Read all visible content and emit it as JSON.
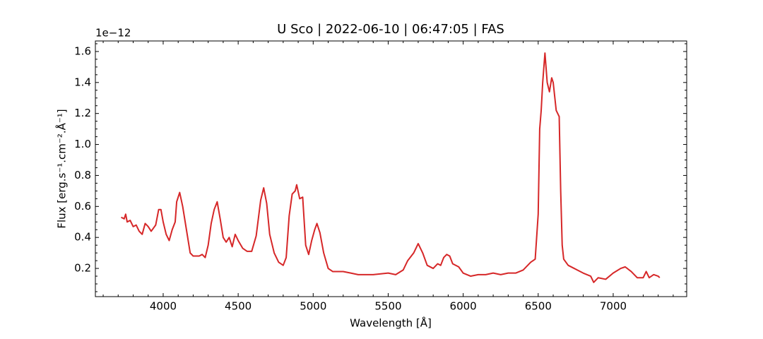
{
  "chart_data": {
    "type": "line",
    "title": "U Sco | 2022-06-10 | 06:47:05 | FAS",
    "xlabel": "Wavelength [Å]",
    "ylabel": "Flux [erg.s⁻¹.cm⁻².Å⁻¹]",
    "y_offset_text": "1e−12",
    "xlim": [
      3548,
      7490
    ],
    "ylim": [
      0.018,
      1.668
    ],
    "xticks": [
      4000,
      4500,
      5000,
      5500,
      6000,
      6500,
      7000
    ],
    "yticks": [
      0.2,
      0.4,
      0.6,
      0.8,
      {
        "value": 1.0,
        "label": "1.0"
      },
      1.2,
      1.4,
      1.6
    ],
    "xminorticks": [
      3600,
      3700,
      3800,
      3900,
      4100,
      4200,
      4300,
      4400,
      4600,
      4700,
      4800,
      4900,
      5100,
      5200,
      5300,
      5400,
      5600,
      5700,
      5800,
      5900,
      6100,
      6200,
      6300,
      6400,
      6600,
      6700,
      6800,
      6900,
      7100,
      7200,
      7300,
      7400
    ],
    "yminorticks": [
      0.05,
      0.1,
      0.15,
      0.25,
      0.3,
      0.35,
      0.45,
      0.5,
      0.55,
      0.65,
      0.7,
      0.75,
      0.85,
      0.9,
      0.95,
      1.05,
      1.1,
      1.15,
      1.25,
      1.3,
      1.35,
      1.45,
      1.5,
      1.55,
      1.65
    ],
    "tick_direction": "in",
    "series": [
      {
        "color": "#d62728",
        "x": [
          3720,
          3740,
          3750,
          3760,
          3780,
          3800,
          3820,
          3840,
          3860,
          3880,
          3900,
          3920,
          3950,
          3970,
          3985,
          4000,
          4020,
          4040,
          4060,
          4080,
          4090,
          4110,
          4130,
          4160,
          4180,
          4200,
          4240,
          4260,
          4280,
          4300,
          4320,
          4340,
          4360,
          4380,
          4400,
          4420,
          4440,
          4460,
          4480,
          4500,
          4530,
          4560,
          4590,
          4620,
          4650,
          4670,
          4690,
          4710,
          4740,
          4770,
          4800,
          4820,
          4840,
          4860,
          4880,
          4890,
          4910,
          4930,
          4950,
          4970,
          4990,
          5010,
          5025,
          5045,
          5070,
          5100,
          5130,
          5200,
          5250,
          5300,
          5400,
          5500,
          5550,
          5600,
          5630,
          5670,
          5700,
          5730,
          5760,
          5800,
          5830,
          5850,
          5870,
          5890,
          5910,
          5930,
          5970,
          6000,
          6050,
          6100,
          6150,
          6200,
          6250,
          6300,
          6350,
          6400,
          6450,
          6480,
          6500,
          6510,
          6520,
          6530,
          6545,
          6560,
          6575,
          6590,
          6600,
          6620,
          6640,
          6650,
          6660,
          6670,
          6700,
          6740,
          6800,
          6850,
          6870,
          6900,
          6950,
          7000,
          7050,
          7080,
          7120,
          7160,
          7200,
          7220,
          7240,
          7270,
          7300,
          7310
        ],
        "values": [
          0.53,
          0.52,
          0.55,
          0.5,
          0.51,
          0.47,
          0.48,
          0.44,
          0.42,
          0.49,
          0.47,
          0.44,
          0.48,
          0.58,
          0.58,
          0.5,
          0.42,
          0.38,
          0.45,
          0.5,
          0.63,
          0.69,
          0.6,
          0.42,
          0.3,
          0.28,
          0.28,
          0.29,
          0.27,
          0.35,
          0.49,
          0.58,
          0.63,
          0.52,
          0.4,
          0.37,
          0.4,
          0.34,
          0.42,
          0.38,
          0.33,
          0.31,
          0.31,
          0.41,
          0.64,
          0.72,
          0.62,
          0.42,
          0.3,
          0.24,
          0.22,
          0.27,
          0.54,
          0.68,
          0.7,
          0.74,
          0.65,
          0.66,
          0.35,
          0.29,
          0.38,
          0.45,
          0.49,
          0.43,
          0.3,
          0.2,
          0.18,
          0.18,
          0.17,
          0.16,
          0.16,
          0.17,
          0.16,
          0.19,
          0.25,
          0.3,
          0.36,
          0.3,
          0.22,
          0.2,
          0.23,
          0.22,
          0.27,
          0.29,
          0.28,
          0.23,
          0.21,
          0.17,
          0.15,
          0.16,
          0.16,
          0.17,
          0.16,
          0.17,
          0.17,
          0.19,
          0.24,
          0.26,
          0.55,
          1.1,
          1.22,
          1.4,
          1.59,
          1.4,
          1.34,
          1.43,
          1.4,
          1.22,
          1.18,
          0.7,
          0.35,
          0.26,
          0.22,
          0.2,
          0.17,
          0.15,
          0.11,
          0.14,
          0.13,
          0.17,
          0.2,
          0.21,
          0.18,
          0.14,
          0.14,
          0.18,
          0.14,
          0.16,
          0.15,
          0.14
        ]
      }
    ]
  }
}
